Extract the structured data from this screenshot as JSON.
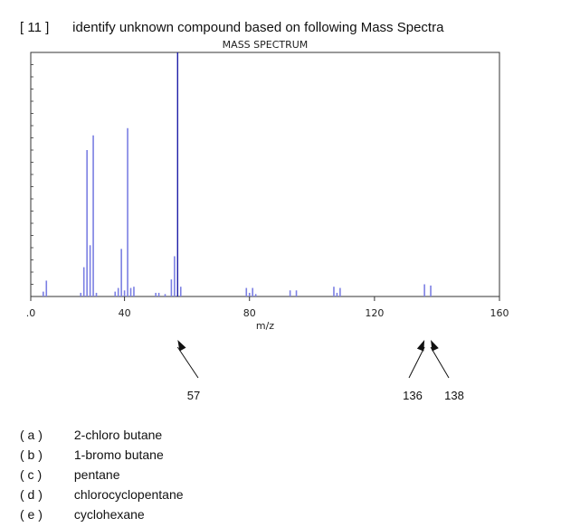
{
  "question": {
    "number": "[ 11 ]",
    "text": "identify unknown compound based on following Mass Spectra"
  },
  "chart_data": {
    "type": "bar",
    "title": "MASS SPECTRUM",
    "xlabel": "m/z",
    "ylabel": "",
    "xlim": [
      10,
      160
    ],
    "ylim": [
      0,
      100
    ],
    "x_ticks": [
      ".0",
      "40",
      "80",
      "120",
      "160"
    ],
    "peaks": [
      {
        "x": 14,
        "y": 2
      },
      {
        "x": 15,
        "y": 6.5
      },
      {
        "x": 26,
        "y": 1.5
      },
      {
        "x": 27,
        "y": 12
      },
      {
        "x": 28,
        "y": 60
      },
      {
        "x": 29,
        "y": 21
      },
      {
        "x": 30,
        "y": 66
      },
      {
        "x": 31,
        "y": 1.5
      },
      {
        "x": 37,
        "y": 2
      },
      {
        "x": 38,
        "y": 3.5
      },
      {
        "x": 39,
        "y": 19.5
      },
      {
        "x": 40,
        "y": 2.5
      },
      {
        "x": 41,
        "y": 69
      },
      {
        "x": 42,
        "y": 3.5
      },
      {
        "x": 43,
        "y": 4
      },
      {
        "x": 50,
        "y": 1.5
      },
      {
        "x": 51,
        "y": 1.5
      },
      {
        "x": 53,
        "y": 1
      },
      {
        "x": 55,
        "y": 7
      },
      {
        "x": 56,
        "y": 16.5
      },
      {
        "x": 57,
        "y": 100
      },
      {
        "x": 58,
        "y": 4
      },
      {
        "x": 79,
        "y": 3.5
      },
      {
        "x": 80,
        "y": 1.5
      },
      {
        "x": 81,
        "y": 3.5
      },
      {
        "x": 82,
        "y": 1
      },
      {
        "x": 93,
        "y": 2.5
      },
      {
        "x": 95,
        "y": 2.5
      },
      {
        "x": 107,
        "y": 4
      },
      {
        "x": 108,
        "y": 1.5
      },
      {
        "x": 109,
        "y": 3.5
      },
      {
        "x": 136,
        "y": 5
      },
      {
        "x": 138,
        "y": 4.5
      }
    ],
    "annotations": [
      {
        "label": "57",
        "target_mz": 57
      },
      {
        "label": "136",
        "target_mz": 136
      },
      {
        "label": "138",
        "target_mz": 138
      }
    ],
    "bar_color": "#7b7fe3",
    "main_peak_color": "#1f1fa8",
    "grid": false
  },
  "options": [
    {
      "label": "( a )",
      "text": "2-chloro butane"
    },
    {
      "label": "( b )",
      "text": "1-bromo butane"
    },
    {
      "label": "( c )",
      "text": "pentane"
    },
    {
      "label": "( d )",
      "text": "chlorocyclopentane"
    },
    {
      "label": "( e )",
      "text": "cyclohexane"
    }
  ]
}
